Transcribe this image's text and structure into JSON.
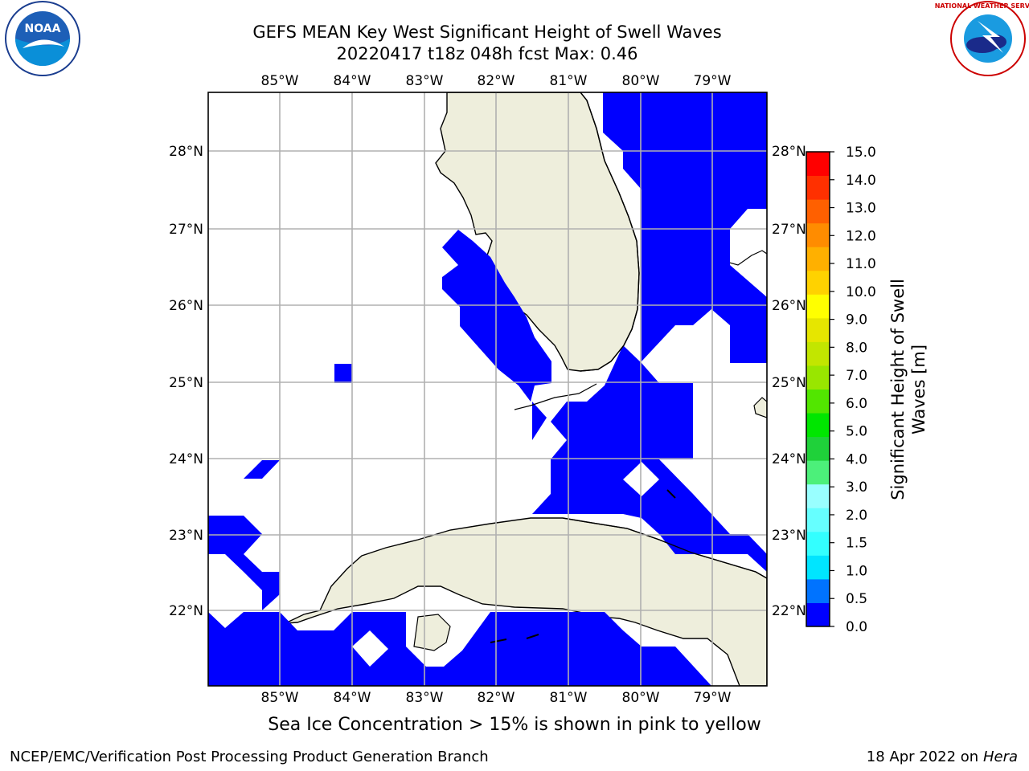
{
  "title": {
    "line1": "GEFS MEAN Key West Significant Height of Swell Waves",
    "line2": "20220417 t18z 048h fcst   Max: 0.46"
  },
  "logos": {
    "left": {
      "name": "noaa-logo",
      "text": "NOAA",
      "ring_text": "NATIONAL OCEANIC AND ATMOSPHERIC ADMINISTRATION · U.S. DEPARTMENT OF COMMERCE"
    },
    "right": {
      "name": "nws-logo",
      "ring_text": "NATIONAL WEATHER SERVICE"
    }
  },
  "map": {
    "lon_labels": [
      "85°W",
      "84°W",
      "83°W",
      "82°W",
      "81°W",
      "80°W",
      "79°W"
    ],
    "lat_labels": [
      "28°N",
      "27°N",
      "26°N",
      "25°N",
      "24°N",
      "23°N",
      "22°N"
    ],
    "swell_color": "#0000ff",
    "land_color": "#eeeedc",
    "grid_color": "#b0b0b0"
  },
  "colorbar": {
    "label": "Significant Height of Swell Waves [m]",
    "label_line1": "Significant Height of Swell",
    "label_line2": "Waves [m]",
    "ticks": [
      "15.0",
      "14.0",
      "13.0",
      "12.0",
      "11.0",
      "10.0",
      "9.0",
      "8.0",
      "7.0",
      "6.0",
      "5.0",
      "4.0",
      "3.0",
      "2.0",
      "1.5",
      "1.0",
      "0.5",
      "0.0"
    ],
    "colors_bottom_to_top": [
      "#0000ff",
      "#0073ff",
      "#00e5ff",
      "#33ffff",
      "#66ffff",
      "#99ffff",
      "#4cf07a",
      "#1fd13a",
      "#00e600",
      "#52e600",
      "#99e600",
      "#c2e600",
      "#e6e600",
      "#ffff00",
      "#ffd200",
      "#ffb000",
      "#ff8c00",
      "#ff6000",
      "#ff3000",
      "#ff0000"
    ]
  },
  "note": "Sea Ice Concentration > 15% is shown in pink to yellow",
  "footer": {
    "left": "NCEP/EMC/Verification Post Processing Product Generation Branch",
    "date": "18 Apr 2022 on ",
    "host": "Hera"
  }
}
